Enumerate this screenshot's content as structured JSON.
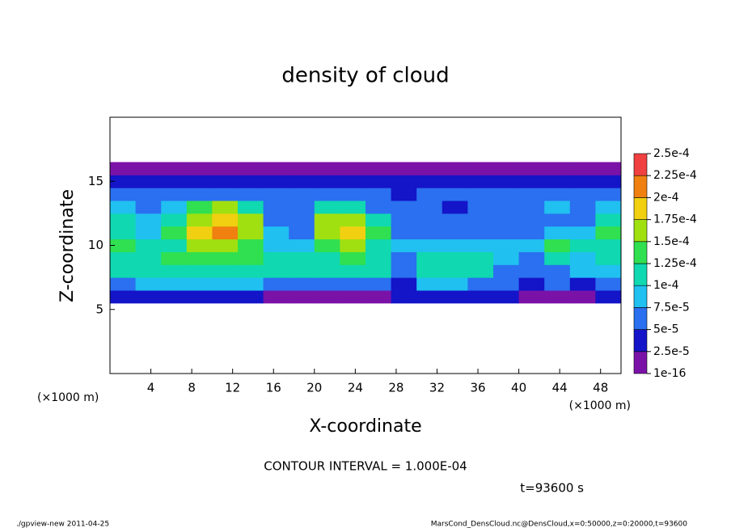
{
  "chart_data": {
    "type": "heatmap",
    "title": "density of cloud",
    "xlabel": "X-coordinate",
    "ylabel": "Z-coordinate",
    "xlim": [
      0,
      50
    ],
    "ylim": [
      0,
      20
    ],
    "xticks": [
      4,
      8,
      12,
      16,
      20,
      24,
      28,
      32,
      36,
      40,
      44,
      48
    ],
    "yticks": [
      5,
      10,
      15
    ],
    "x": [
      1.25,
      3.75,
      6.25,
      8.75,
      11.25,
      13.75,
      16.25,
      18.75,
      21.25,
      23.75,
      26.25,
      28.75,
      31.25,
      33.75,
      36.25,
      38.75,
      41.25,
      43.75,
      46.25,
      48.75
    ],
    "y": [
      6,
      7,
      8,
      9,
      10,
      11,
      12,
      13,
      14,
      15,
      16
    ],
    "values": [
      [
        3e-05,
        4e-05,
        3e-05,
        4e-05,
        3e-05,
        3e-05,
        2e-05,
        1e-05,
        2e-05,
        1e-05,
        2e-05,
        3e-05,
        3e-05,
        4e-05,
        4e-05,
        3e-05,
        2e-05,
        2e-05,
        2e-05,
        3e-05
      ],
      [
        5e-05,
        8e-05,
        9e-05,
        9e-05,
        9e-05,
        8e-05,
        7e-05,
        6e-05,
        7e-05,
        6e-05,
        6e-05,
        4e-05,
        8e-05,
        8e-05,
        7e-05,
        5e-05,
        4e-05,
        5e-05,
        4e-05,
        5e-05
      ],
      [
        0.0001,
        0.00011,
        0.00012,
        0.00012,
        0.00012,
        0.00011,
        0.00011,
        0.00011,
        0.00011,
        0.00011,
        0.0001,
        6e-05,
        0.00011,
        0.00011,
        0.0001,
        7e-05,
        5e-05,
        7e-05,
        8e-05,
        8e-05
      ],
      [
        0.00012,
        0.00011,
        0.00013,
        0.00014,
        0.00014,
        0.00013,
        0.0001,
        0.0001,
        0.00012,
        0.00013,
        0.00011,
        7e-05,
        0.00011,
        0.00011,
        0.00011,
        8e-05,
        6e-05,
        0.00011,
        9e-05,
        0.0001
      ],
      [
        0.00013,
        0.00011,
        0.00012,
        0.00015,
        0.00016,
        0.00014,
        9e-05,
        9e-05,
        0.00013,
        0.00015,
        0.00012,
        8e-05,
        9e-05,
        8e-05,
        8e-05,
        8e-05,
        8e-05,
        0.00013,
        0.0001,
        0.00012
      ],
      [
        0.00012,
        9e-05,
        0.00013,
        0.00018,
        0.0002,
        0.00017,
        9e-05,
        7e-05,
        0.00017,
        0.00019,
        0.00013,
        7e-05,
        7e-05,
        6e-05,
        6e-05,
        7e-05,
        7e-05,
        9e-05,
        8e-05,
        0.00013
      ],
      [
        0.0001,
        8e-05,
        0.00011,
        0.00016,
        0.00019,
        0.00015,
        7e-05,
        6e-05,
        0.00016,
        0.00015,
        0.0001,
        6e-05,
        6e-05,
        5e-05,
        6e-05,
        6e-05,
        5e-05,
        7e-05,
        7e-05,
        0.00012
      ],
      [
        8e-05,
        6e-05,
        8e-05,
        0.00013,
        0.00016,
        0.0001,
        6e-05,
        5e-05,
        0.0001,
        0.0001,
        7e-05,
        5e-05,
        5e-05,
        4e-05,
        6e-05,
        7e-05,
        5e-05,
        8e-05,
        7e-05,
        9e-05
      ],
      [
        6e-05,
        5e-05,
        6e-05,
        7e-05,
        7e-05,
        6e-05,
        5e-05,
        5e-05,
        6e-05,
        6e-05,
        5e-05,
        4e-05,
        5e-05,
        5e-05,
        6e-05,
        6e-05,
        5e-05,
        6e-05,
        6e-05,
        7e-05
      ],
      [
        4e-05,
        3e-05,
        4e-05,
        4e-05,
        4e-05,
        3e-05,
        3e-05,
        3e-05,
        4e-05,
        4e-05,
        3e-05,
        3e-05,
        3e-05,
        4e-05,
        4e-05,
        3e-05,
        3e-05,
        4e-05,
        4e-05,
        4e-05
      ],
      [
        1e-05,
        1e-05,
        1e-05,
        1e-05,
        1e-05,
        1e-05,
        1e-05,
        1e-05,
        1e-05,
        1e-05,
        1e-05,
        1e-05,
        1e-05,
        1e-05,
        1e-05,
        1e-05,
        1e-05,
        1e-05,
        1e-05,
        1e-05
      ]
    ],
    "levels": [
      {
        "value": 1e-16,
        "label": "1e-16"
      },
      {
        "value": 2.5e-05,
        "label": "2.5e-5"
      },
      {
        "value": 5e-05,
        "label": "5e-5"
      },
      {
        "value": 7.5e-05,
        "label": "7.5e-5"
      },
      {
        "value": 0.0001,
        "label": "1e-4"
      },
      {
        "value": 0.000125,
        "label": "1.25e-4"
      },
      {
        "value": 0.00015,
        "label": "1.5e-4"
      },
      {
        "value": 0.000175,
        "label": "1.75e-4"
      },
      {
        "value": 0.0002,
        "label": "2e-4"
      },
      {
        "value": 0.000225,
        "label": "2.25e-4"
      },
      {
        "value": 0.00025,
        "label": "2.5e-4"
      }
    ],
    "colors": [
      "#7a12a8",
      "#1414c8",
      "#2a70f0",
      "#20c0f0",
      "#10d8b0",
      "#30e050",
      "#a0e010",
      "#f0d010",
      "#f08010",
      "#f04040"
    ],
    "x_unit_label": "(×1000 m)",
    "contour_interval": "CONTOUR INTERVAL = 1.000E-04",
    "time_label": "t=93600 s",
    "footer_left": "./gpview-new   2011-04-25",
    "footer_right": "MarsCond_DensCloud.nc@DensCloud,x=0:50000,z=0:20000,t=93600"
  }
}
